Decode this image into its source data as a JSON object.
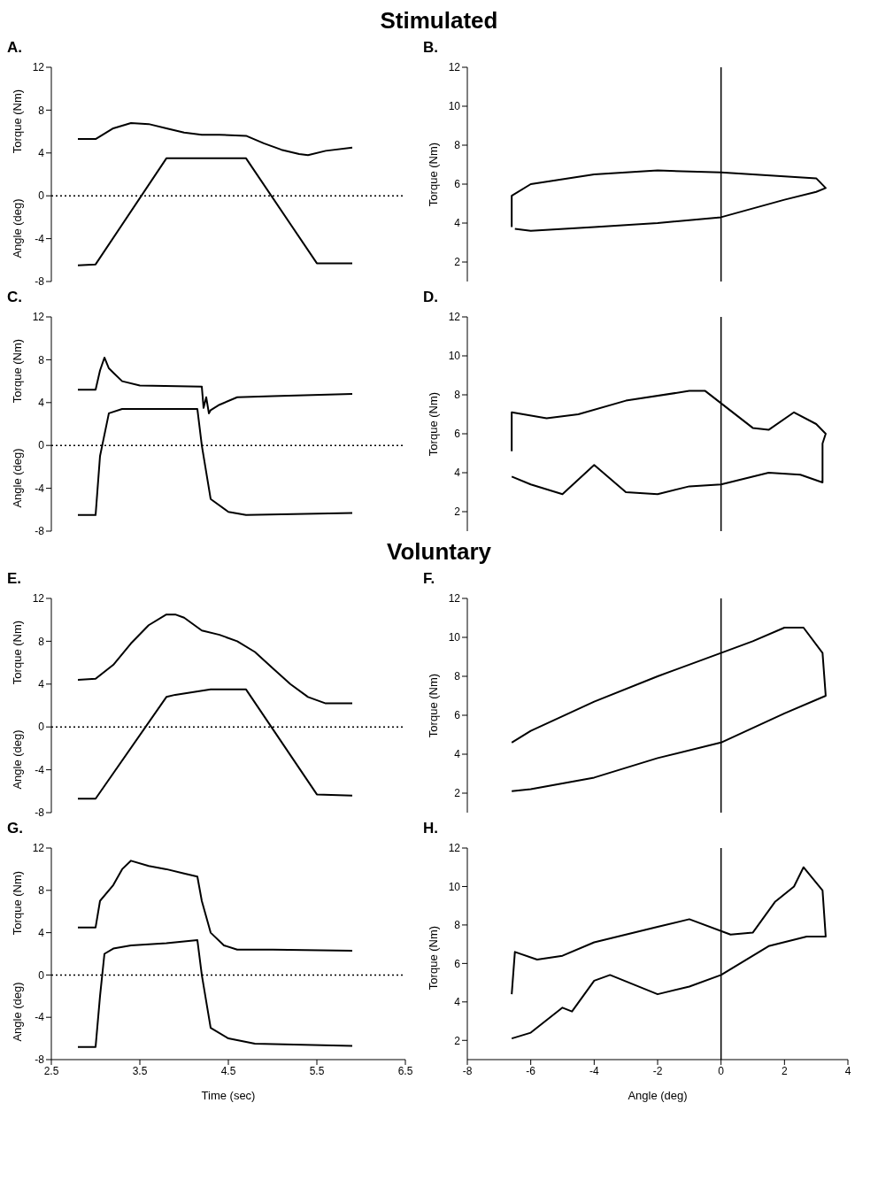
{
  "chart_data": [
    {
      "type": "line",
      "title": "A.",
      "subtitle": "Stimulated",
      "ylabel": "Torque (Nm)",
      "annotations": [
        "Angle (deg)"
      ],
      "xlim": [
        2.5,
        6.5
      ],
      "xticks": [
        2.5,
        3.5,
        4.5,
        5.5,
        6.5
      ],
      "ylim": [
        -8,
        12
      ],
      "yticks": [
        -8,
        -4,
        0,
        4,
        8,
        12
      ],
      "tick_labels": "y",
      "marker": "none",
      "ref_lines": [
        {
          "axis": "y",
          "value": 0,
          "line_style": "dotted",
          "color": "#000000"
        }
      ],
      "series": [
        {
          "color": "#000000",
          "x": [
            2.8,
            3.0,
            3.2,
            3.4,
            3.6,
            3.8,
            4.0,
            4.2,
            4.4,
            4.7,
            4.9,
            5.1,
            5.3,
            5.4,
            5.6,
            5.9
          ],
          "values": [
            5.3,
            5.3,
            6.3,
            6.8,
            6.7,
            6.3,
            5.9,
            5.7,
            5.7,
            5.6,
            4.9,
            4.3,
            3.9,
            3.8,
            4.2,
            4.5
          ]
        },
        {
          "color": "#000000",
          "x": [
            2.8,
            3.0,
            3.8,
            4.7,
            5.5,
            5.9
          ],
          "values": [
            -6.5,
            -6.4,
            3.5,
            3.5,
            -6.3,
            -6.3
          ]
        }
      ]
    },
    {
      "type": "line",
      "title": "B.",
      "ylabel": "Torque (Nm)",
      "xlim": [
        -8,
        4
      ],
      "xticks": [
        -8,
        -6,
        -4,
        -2,
        0,
        2,
        4
      ],
      "ylim": [
        1,
        12
      ],
      "yticks": [
        2,
        4,
        6,
        8,
        10,
        12
      ],
      "tick_labels": "y",
      "marker": "none",
      "ref_lines": [
        {
          "axis": "x",
          "value": 0,
          "line_style": "solid",
          "color": "#000000"
        }
      ],
      "series": [
        {
          "color": "#000000",
          "x": [
            -6.6,
            -6.6,
            -6,
            -4,
            -2,
            0,
            2,
            3,
            3.3,
            3,
            2,
            0,
            -2,
            -4,
            -6,
            -6.5
          ],
          "values": [
            3.8,
            5.4,
            6.0,
            6.5,
            6.7,
            6.6,
            6.4,
            6.3,
            5.8,
            5.6,
            5.2,
            4.3,
            4.0,
            3.8,
            3.6,
            3.7
          ]
        }
      ]
    },
    {
      "type": "line",
      "title": "C.",
      "ylabel": "Torque (Nm)",
      "annotations": [
        "Angle (deg)"
      ],
      "xlim": [
        2.5,
        6.5
      ],
      "xticks": [
        2.5,
        3.5,
        4.5,
        5.5,
        6.5
      ],
      "ylim": [
        -8,
        12
      ],
      "yticks": [
        -8,
        -4,
        0,
        4,
        8,
        12
      ],
      "tick_labels": "y",
      "marker": "none",
      "ref_lines": [
        {
          "axis": "y",
          "value": 0,
          "line_style": "dotted",
          "color": "#000000"
        }
      ],
      "series": [
        {
          "color": "#000000",
          "x": [
            2.8,
            3.0,
            3.05,
            3.1,
            3.15,
            3.2,
            3.3,
            3.5,
            4.2,
            4.22,
            4.25,
            4.28,
            4.3,
            4.4,
            4.6,
            5.0,
            5.9
          ],
          "values": [
            5.2,
            5.2,
            7.0,
            8.2,
            7.2,
            6.8,
            6.0,
            5.6,
            5.5,
            3.5,
            4.5,
            3.0,
            3.3,
            3.8,
            4.5,
            4.6,
            4.8
          ]
        },
        {
          "color": "#000000",
          "x": [
            2.8,
            3.0,
            3.05,
            3.15,
            3.3,
            4.15,
            4.2,
            4.3,
            4.5,
            4.7,
            5.9
          ],
          "values": [
            -6.5,
            -6.5,
            -1,
            3.0,
            3.4,
            3.4,
            0,
            -5,
            -6.2,
            -6.5,
            -6.3
          ]
        }
      ]
    },
    {
      "type": "line",
      "title": "D.",
      "ylabel": "Torque (Nm)",
      "xlim": [
        -8,
        4
      ],
      "xticks": [
        -8,
        -6,
        -4,
        -2,
        0,
        2,
        4
      ],
      "ylim": [
        1,
        12
      ],
      "yticks": [
        2,
        4,
        6,
        8,
        10,
        12
      ],
      "tick_labels": "y",
      "marker": "none",
      "ref_lines": [
        {
          "axis": "x",
          "value": 0,
          "line_style": "solid",
          "color": "#000000"
        }
      ],
      "series": [
        {
          "color": "#000000",
          "x": [
            -6.6,
            -6.6,
            -5.5,
            -4.5,
            -3,
            -1,
            -0.5,
            1,
            1.5,
            2.3,
            3,
            3.3,
            3.2,
            3.2,
            2.5,
            1.5,
            0,
            -1,
            -2,
            -3,
            -4,
            -5,
            -6,
            -6.6
          ],
          "values": [
            5.1,
            7.1,
            6.8,
            7.0,
            7.7,
            8.2,
            8.2,
            6.3,
            6.2,
            7.1,
            6.5,
            6.0,
            5.5,
            3.5,
            3.9,
            4.0,
            3.4,
            3.3,
            2.9,
            3.0,
            4.4,
            2.9,
            3.4,
            3.8
          ]
        }
      ]
    },
    {
      "type": "line",
      "title": "E.",
      "subtitle": "Voluntary",
      "ylabel": "Torque (Nm)",
      "annotations": [
        "Angle (deg)"
      ],
      "xlim": [
        2.5,
        6.5
      ],
      "xticks": [
        2.5,
        3.5,
        4.5,
        5.5,
        6.5
      ],
      "ylim": [
        -8,
        12
      ],
      "yticks": [
        -8,
        -4,
        0,
        4,
        8,
        12
      ],
      "tick_labels": "y",
      "marker": "none",
      "ref_lines": [
        {
          "axis": "y",
          "value": 0,
          "line_style": "dotted",
          "color": "#000000"
        }
      ],
      "series": [
        {
          "color": "#000000",
          "x": [
            2.8,
            3.0,
            3.2,
            3.4,
            3.6,
            3.8,
            3.9,
            4.0,
            4.2,
            4.4,
            4.6,
            4.8,
            5.0,
            5.2,
            5.4,
            5.6,
            5.9
          ],
          "values": [
            4.4,
            4.5,
            5.8,
            7.8,
            9.5,
            10.5,
            10.5,
            10.2,
            9.0,
            8.6,
            8.0,
            7.0,
            5.5,
            4.0,
            2.8,
            2.2,
            2.2
          ]
        },
        {
          "color": "#000000",
          "x": [
            2.8,
            3.0,
            3.8,
            3.9,
            4.3,
            4.7,
            5.5,
            5.9
          ],
          "values": [
            -6.7,
            -6.7,
            2.8,
            3.0,
            3.5,
            3.5,
            -6.3,
            -6.4
          ]
        }
      ]
    },
    {
      "type": "line",
      "title": "F.",
      "ylabel": "Torque (Nm)",
      "xlim": [
        -8,
        4
      ],
      "xticks": [
        -8,
        -6,
        -4,
        -2,
        0,
        2,
        4
      ],
      "ylim": [
        1,
        12
      ],
      "yticks": [
        2,
        4,
        6,
        8,
        10,
        12
      ],
      "tick_labels": "y",
      "marker": "none",
      "ref_lines": [
        {
          "axis": "x",
          "value": 0,
          "line_style": "solid",
          "color": "#000000"
        }
      ],
      "series": [
        {
          "color": "#000000",
          "x": [
            -6.6,
            -6,
            -4,
            -2,
            0,
            1,
            2,
            2.6,
            3.2,
            3.3,
            2,
            0,
            -2,
            -4,
            -6,
            -6.6
          ],
          "values": [
            4.6,
            5.2,
            6.7,
            8.0,
            9.2,
            9.8,
            10.5,
            10.5,
            9.2,
            7.0,
            6.1,
            4.6,
            3.8,
            2.8,
            2.2,
            2.1
          ]
        }
      ]
    },
    {
      "type": "line",
      "title": "G.",
      "ylabel": "Torque (Nm)",
      "annotations": [
        "Angle (deg)"
      ],
      "xlabel": "Time (sec)",
      "xlim": [
        2.5,
        6.5
      ],
      "xticks": [
        2.5,
        3.5,
        4.5,
        5.5,
        6.5
      ],
      "ylim": [
        -8,
        12
      ],
      "yticks": [
        -8,
        -4,
        0,
        4,
        8,
        12
      ],
      "marker": "none",
      "ref_lines": [
        {
          "axis": "y",
          "value": 0,
          "line_style": "dotted",
          "color": "#000000"
        }
      ],
      "series": [
        {
          "color": "#000000",
          "x": [
            2.8,
            3.0,
            3.05,
            3.2,
            3.3,
            3.4,
            3.6,
            3.8,
            4.0,
            4.15,
            4.2,
            4.3,
            4.45,
            4.6,
            5.0,
            5.9
          ],
          "values": [
            4.5,
            4.5,
            7.0,
            8.5,
            10.0,
            10.8,
            10.3,
            10.0,
            9.6,
            9.3,
            7.0,
            4.0,
            2.8,
            2.4,
            2.4,
            2.3
          ]
        },
        {
          "color": "#000000",
          "x": [
            2.8,
            3.0,
            3.05,
            3.1,
            3.2,
            3.4,
            3.8,
            4.15,
            4.2,
            4.3,
            4.5,
            4.8,
            5.9
          ],
          "values": [
            -6.8,
            -6.8,
            -2,
            2.0,
            2.5,
            2.8,
            3.0,
            3.3,
            0,
            -5,
            -6.0,
            -6.5,
            -6.7
          ]
        }
      ]
    },
    {
      "type": "line",
      "title": "H.",
      "ylabel": "Torque (Nm)",
      "xlabel": "Angle (deg)",
      "xlim": [
        -8,
        4
      ],
      "xticks": [
        -8,
        -6,
        -4,
        -2,
        0,
        2,
        4
      ],
      "ylim": [
        1,
        12
      ],
      "yticks": [
        2,
        4,
        6,
        8,
        10,
        12
      ],
      "marker": "none",
      "ref_lines": [
        {
          "axis": "x",
          "value": 0,
          "line_style": "solid",
          "color": "#000000"
        }
      ],
      "series": [
        {
          "color": "#000000",
          "x": [
            -6.6,
            -6.5,
            -5.8,
            -5,
            -4,
            -2,
            -1,
            0.3,
            1,
            1.7,
            2.3,
            2.6,
            3.2,
            3.3,
            2.7,
            1.5,
            0,
            -1,
            -2,
            -3.5,
            -4,
            -4.7,
            -5,
            -6,
            -6.6
          ],
          "values": [
            4.4,
            6.6,
            6.2,
            6.4,
            7.1,
            7.9,
            8.3,
            7.5,
            7.6,
            9.2,
            10.0,
            11.0,
            9.8,
            7.4,
            7.4,
            6.9,
            5.4,
            4.8,
            4.4,
            5.4,
            5.1,
            3.5,
            3.7,
            2.4,
            2.1
          ]
        }
      ]
    }
  ]
}
